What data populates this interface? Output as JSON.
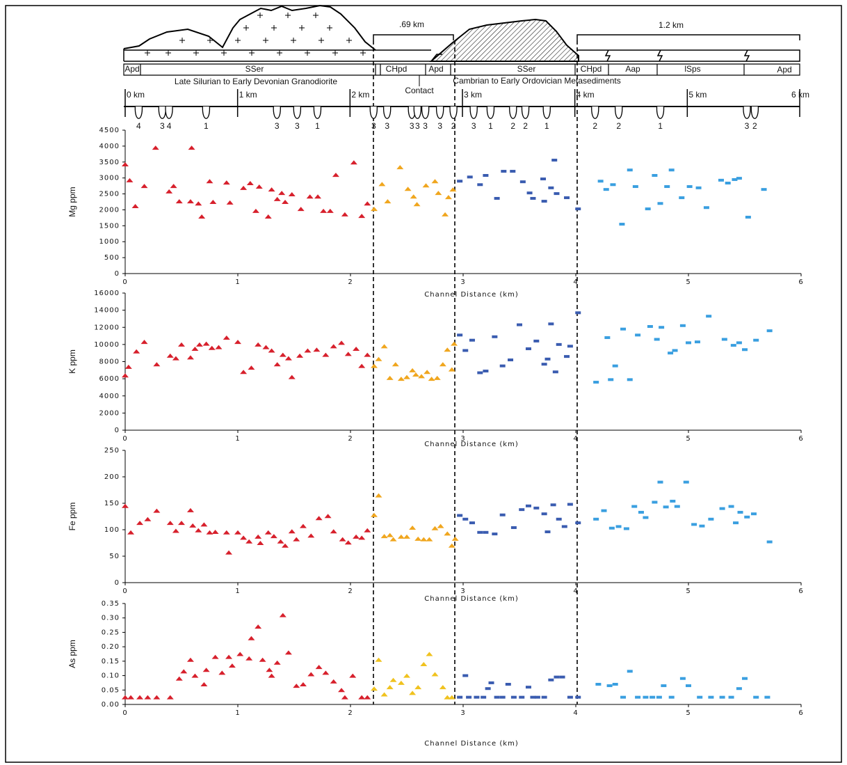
{
  "cross_section": {
    "brackets": [
      ".69 km",
      "1.2 km"
    ],
    "units": [
      "Apd",
      "SSer",
      "CHpd",
      "Apd",
      "SSer",
      "CHpd",
      "Aap",
      "lSps",
      "Apd"
    ],
    "formations": [
      "Late Silurian to Early Devonian Granodiorite",
      "Contact",
      "Cambrian to Early Ordovician Metasediments"
    ],
    "scale": {
      "xlim": [
        0,
        6
      ],
      "ticks": [
        {
          "value": 0,
          "label": "0 km"
        },
        {
          "value": 1,
          "label": "1 km"
        },
        {
          "value": 2,
          "label": "2 km"
        },
        {
          "value": 3,
          "label": "3 km"
        },
        {
          "value": 4,
          "label": "4 km"
        },
        {
          "value": 5,
          "label": "5 km"
        },
        {
          "value": 6,
          "label": "6 km"
        }
      ]
    },
    "samples": {
      "x": [
        0.12,
        0.33,
        0.39,
        0.72,
        1.35,
        1.53,
        1.71,
        2.21,
        2.33,
        2.55,
        2.6,
        2.67,
        2.8,
        2.92,
        3.1,
        3.25,
        3.45,
        3.56,
        3.75,
        4.18,
        4.39,
        4.76,
        5.53,
        5.6
      ],
      "labels": [
        4,
        3,
        4,
        1,
        3,
        3,
        1,
        3,
        3,
        3,
        3,
        3,
        3,
        2,
        3,
        1,
        2,
        2,
        1,
        2,
        2,
        1,
        3,
        2
      ]
    }
  },
  "chart_data": [
    {
      "type": "scatter",
      "xlabel": "Channel Distance (km)",
      "ylabel": "Mg ppm",
      "xlim": [
        0,
        6
      ],
      "xticks": [
        0,
        1,
        2,
        3,
        4,
        5,
        6
      ],
      "ylim": [
        0,
        4500
      ],
      "yticks": [
        0,
        500,
        1000,
        1500,
        2000,
        2500,
        3000,
        3500,
        4000,
        4500
      ],
      "series": [
        {
          "color": "#d7202c",
          "marker": "triangle",
          "x": [
            0,
            0.04,
            0.09,
            0.17,
            0.27,
            0.39,
            0.43,
            0.48,
            0.59,
            0.58,
            0.65,
            0.68,
            0.75,
            0.78,
            0.9,
            0.93,
            1.05,
            1.11,
            1.16,
            1.19,
            1.27,
            1.3,
            1.35,
            1.39,
            1.42,
            1.48,
            1.56,
            1.64,
            1.71,
            1.76,
            1.82,
            1.87,
            1.95,
            2.03,
            2.1,
            2.15
          ],
          "values": [
            3430,
            2930,
            2120,
            2750,
            3950,
            2580,
            2750,
            2270,
            3950,
            2270,
            2200,
            1790,
            2900,
            2250,
            2860,
            2230,
            2690,
            2840,
            1970,
            2730,
            1790,
            2640,
            2340,
            2530,
            2250,
            2490,
            2030,
            2420,
            2420,
            1970,
            1970,
            3100,
            1860,
            3490,
            1810,
            2200
          ]
        },
        {
          "color": "#f0a61e",
          "marker": "triangle",
          "x": [
            2.21,
            2.28,
            2.33,
            2.44,
            2.51,
            2.56,
            2.59,
            2.67,
            2.75,
            2.78,
            2.84,
            2.87,
            2.91
          ],
          "values": [
            2030,
            2810,
            2270,
            3340,
            2660,
            2420,
            2180,
            2770,
            2900,
            2530,
            1860,
            2400,
            2640
          ]
        },
        {
          "color": "#3a5cb0",
          "marker": "dash",
          "x": [
            2.97,
            3.06,
            3.15,
            3.2,
            3.3,
            3.36,
            3.44,
            3.53,
            3.59,
            3.62,
            3.71,
            3.72,
            3.78,
            3.81,
            3.83,
            3.92,
            4.02
          ],
          "values": [
            2900,
            3030,
            2790,
            3080,
            2360,
            3210,
            3210,
            2880,
            2530,
            2360,
            2970,
            2270,
            2690,
            3560,
            2510,
            2380,
            2030
          ]
        },
        {
          "color": "#3a9fe0",
          "marker": "dash",
          "x": [
            4.22,
            4.27,
            4.33,
            4.41,
            4.48,
            4.53,
            4.64,
            4.7,
            4.75,
            4.81,
            4.85,
            4.94,
            5.01,
            5.09,
            5.16,
            5.29,
            5.35,
            5.41,
            5.45,
            5.53,
            5.67
          ],
          "values": [
            2900,
            2640,
            2790,
            1550,
            3250,
            2730,
            2030,
            3080,
            2200,
            2730,
            3250,
            2380,
            2730,
            2690,
            2070,
            2930,
            2840,
            2950,
            2990,
            1770,
            2640
          ]
        }
      ]
    },
    {
      "type": "scatter",
      "xlabel": "Channel Distance (km)",
      "ylabel": "K ppm",
      "xlim": [
        0,
        6
      ],
      "xticks": [
        0,
        1,
        2,
        3,
        4,
        5,
        6
      ],
      "ylim": [
        0,
        16000
      ],
      "yticks": [
        0,
        2000,
        4000,
        6000,
        8000,
        10000,
        12000,
        14000,
        16000
      ],
      "series": [
        {
          "color": "#d7202c",
          "marker": "triangle",
          "x": [
            0,
            0.03,
            0.1,
            0.17,
            0.28,
            0.4,
            0.45,
            0.5,
            0.58,
            0.62,
            0.66,
            0.72,
            0.77,
            0.83,
            0.9,
            1.0,
            1.05,
            1.12,
            1.18,
            1.25,
            1.3,
            1.35,
            1.4,
            1.45,
            1.48,
            1.55,
            1.62,
            1.7,
            1.78,
            1.85,
            1.92,
            1.98,
            2.05,
            2.1,
            2.15
          ],
          "values": [
            6400,
            7400,
            9200,
            10300,
            7700,
            8700,
            8400,
            10000,
            8500,
            9500,
            10000,
            10100,
            9600,
            9700,
            10800,
            10300,
            6800,
            7300,
            10000,
            9700,
            9300,
            7700,
            8800,
            8400,
            6200,
            8700,
            9300,
            9400,
            8800,
            9800,
            10200,
            8900,
            9500,
            7500,
            8800
          ]
        },
        {
          "color": "#f0a61e",
          "marker": "triangle",
          "x": [
            2.21,
            2.25,
            2.3,
            2.35,
            2.4,
            2.45,
            2.5,
            2.55,
            2.58,
            2.63,
            2.68,
            2.72,
            2.77,
            2.82,
            2.86,
            2.9,
            2.92
          ],
          "values": [
            7500,
            8300,
            9800,
            6100,
            7700,
            6000,
            6200,
            7000,
            6500,
            6300,
            6800,
            6000,
            6100,
            7700,
            9400,
            7100,
            10100
          ]
        },
        {
          "color": "#3a5cb0",
          "marker": "dash",
          "x": [
            2.97,
            3.02,
            3.08,
            3.15,
            3.2,
            3.28,
            3.35,
            3.42,
            3.5,
            3.58,
            3.65,
            3.72,
            3.75,
            3.78,
            3.82,
            3.85,
            3.92,
            3.95,
            4.02
          ],
          "values": [
            11100,
            9300,
            10500,
            6700,
            6900,
            10900,
            7500,
            8200,
            12300,
            9500,
            10400,
            7700,
            8300,
            12400,
            6800,
            10000,
            8600,
            9800,
            13700
          ]
        },
        {
          "color": "#3a9fe0",
          "marker": "dash",
          "x": [
            4.18,
            4.28,
            4.31,
            4.35,
            4.42,
            4.48,
            4.55,
            4.66,
            4.72,
            4.76,
            4.84,
            4.88,
            4.95,
            5.0,
            5.08,
            5.18,
            5.32,
            5.4,
            5.45,
            5.5,
            5.6,
            5.72
          ],
          "values": [
            5600,
            10800,
            5900,
            7500,
            11800,
            5900,
            11100,
            12100,
            10600,
            12000,
            9000,
            9300,
            12200,
            10200,
            10300,
            13300,
            10600,
            9900,
            10200,
            9400,
            10500,
            11600
          ]
        }
      ]
    },
    {
      "type": "scatter",
      "xlabel": "Channel Distance (km)",
      "ylabel": "Fe ppm",
      "xlim": [
        0,
        6
      ],
      "xticks": [
        0,
        1,
        2,
        3,
        4,
        5,
        6
      ],
      "ylim": [
        0,
        250
      ],
      "yticks": [
        0,
        50,
        100,
        150,
        200,
        250
      ],
      "series": [
        {
          "color": "#d7202c",
          "marker": "triangle",
          "x": [
            0,
            0.05,
            0.13,
            0.2,
            0.28,
            0.4,
            0.45,
            0.5,
            0.58,
            0.6,
            0.65,
            0.7,
            0.75,
            0.8,
            0.9,
            0.92,
            1.0,
            1.05,
            1.1,
            1.18,
            1.2,
            1.27,
            1.32,
            1.38,
            1.42,
            1.48,
            1.52,
            1.58,
            1.65,
            1.72,
            1.8,
            1.85,
            1.93,
            1.98,
            2.05,
            2.1,
            2.15
          ],
          "values": [
            145,
            95,
            113,
            120,
            136,
            113,
            98,
            113,
            137,
            108,
            99,
            110,
            95,
            96,
            95,
            57,
            95,
            85,
            78,
            87,
            75,
            95,
            88,
            78,
            70,
            97,
            82,
            107,
            89,
            122,
            126,
            97,
            82,
            76,
            87,
            85,
            99
          ]
        },
        {
          "color": "#f0a61e",
          "marker": "triangle",
          "x": [
            2.21,
            2.25,
            2.3,
            2.35,
            2.38,
            2.45,
            2.5,
            2.55,
            2.6,
            2.65,
            2.7,
            2.75,
            2.8,
            2.86,
            2.9,
            2.93
          ],
          "values": [
            128,
            165,
            88,
            90,
            82,
            87,
            87,
            104,
            83,
            82,
            82,
            103,
            107,
            93,
            70,
            83
          ]
        },
        {
          "color": "#3a5cb0",
          "marker": "dash",
          "x": [
            2.97,
            3.02,
            3.08,
            3.15,
            3.2,
            3.28,
            3.35,
            3.45,
            3.52,
            3.58,
            3.65,
            3.72,
            3.75,
            3.8,
            3.85,
            3.9,
            3.95,
            4.02
          ],
          "values": [
            127,
            120,
            113,
            95,
            95,
            92,
            128,
            104,
            138,
            145,
            141,
            130,
            96,
            147,
            120,
            106,
            148,
            113
          ]
        },
        {
          "color": "#3a9fe0",
          "marker": "dash",
          "x": [
            4.18,
            4.25,
            4.32,
            4.38,
            4.45,
            4.52,
            4.58,
            4.62,
            4.7,
            4.75,
            4.8,
            4.86,
            4.9,
            4.98,
            5.05,
            5.12,
            5.2,
            5.3,
            5.38,
            5.42,
            5.46,
            5.52,
            5.58,
            5.72
          ],
          "values": [
            120,
            136,
            103,
            106,
            102,
            144,
            133,
            123,
            152,
            190,
            143,
            154,
            144,
            190,
            110,
            107,
            120,
            140,
            144,
            113,
            133,
            124,
            130,
            77
          ]
        }
      ]
    },
    {
      "type": "scatter",
      "xlabel": "Channel Distance (km)",
      "ylabel": "As ppm",
      "xlim": [
        0,
        6
      ],
      "xticks": [
        0,
        1,
        2,
        3,
        4,
        5,
        6
      ],
      "ylim": [
        0,
        0.35
      ],
      "yticks": [
        {
          "value": 0,
          "label": "0.00"
        },
        0.05,
        {
          "value": 0.1,
          "label": "0.10"
        },
        0.15,
        {
          "value": 0.2,
          "label": "0.20"
        },
        0.25,
        {
          "value": 0.3,
          "label": "0.30"
        },
        0.35
      ],
      "series": [
        {
          "color": "#d7202c",
          "marker": "triangle",
          "x": [
            0,
            0.05,
            0.13,
            0.2,
            0.28,
            0.4,
            0.48,
            0.52,
            0.58,
            0.62,
            0.7,
            0.72,
            0.8,
            0.86,
            0.92,
            0.95,
            1.02,
            1.1,
            1.12,
            1.18,
            1.22,
            1.28,
            1.3,
            1.35,
            1.4,
            1.45,
            1.52,
            1.58,
            1.65,
            1.72,
            1.78,
            1.85,
            1.92,
            1.95,
            2.02,
            2.1,
            2.15
          ],
          "values": [
            0.025,
            0.025,
            0.025,
            0.025,
            0.025,
            0.025,
            0.09,
            0.115,
            0.155,
            0.1,
            0.07,
            0.12,
            0.165,
            0.11,
            0.165,
            0.135,
            0.175,
            0.16,
            0.23,
            0.27,
            0.155,
            0.12,
            0.1,
            0.145,
            0.31,
            0.18,
            0.065,
            0.07,
            0.105,
            0.13,
            0.11,
            0.08,
            0.05,
            0.025,
            0.1,
            0.025,
            0.025
          ]
        },
        {
          "color": "#f0c21e",
          "marker": "triangle",
          "x": [
            2.21,
            2.25,
            2.3,
            2.35,
            2.38,
            2.45,
            2.5,
            2.55,
            2.6,
            2.65,
            2.7,
            2.75,
            2.82,
            2.86,
            2.9
          ],
          "values": [
            0.055,
            0.155,
            0.035,
            0.06,
            0.085,
            0.075,
            0.1,
            0.04,
            0.06,
            0.14,
            0.175,
            0.105,
            0.06,
            0.025,
            0.025
          ]
        },
        {
          "color": "#3a5cb0",
          "marker": "dash",
          "x": [
            2.97,
            3.02,
            3.05,
            3.12,
            3.18,
            3.22,
            3.25,
            3.3,
            3.35,
            3.4,
            3.45,
            3.52,
            3.58,
            3.62,
            3.66,
            3.72,
            3.78,
            3.83,
            3.88,
            3.95,
            4.02
          ],
          "values": [
            0.025,
            0.1,
            0.025,
            0.025,
            0.025,
            0.055,
            0.075,
            0.025,
            0.025,
            0.07,
            0.025,
            0.025,
            0.06,
            0.025,
            0.025,
            0.025,
            0.085,
            0.095,
            0.095,
            0.025,
            0.025
          ]
        },
        {
          "color": "#3a9fe0",
          "marker": "dash",
          "x": [
            4.2,
            4.3,
            4.35,
            4.42,
            4.48,
            4.55,
            4.62,
            4.68,
            4.74,
            4.78,
            4.85,
            4.95,
            5.0,
            5.1,
            5.2,
            5.3,
            5.38,
            5.45,
            5.5,
            5.6,
            5.7
          ],
          "values": [
            0.07,
            0.065,
            0.07,
            0.025,
            0.115,
            0.025,
            0.025,
            0.025,
            0.025,
            0.065,
            0.025,
            0.09,
            0.065,
            0.025,
            0.025,
            0.025,
            0.025,
            0.055,
            0.09,
            0.025,
            0.025
          ]
        }
      ]
    }
  ]
}
